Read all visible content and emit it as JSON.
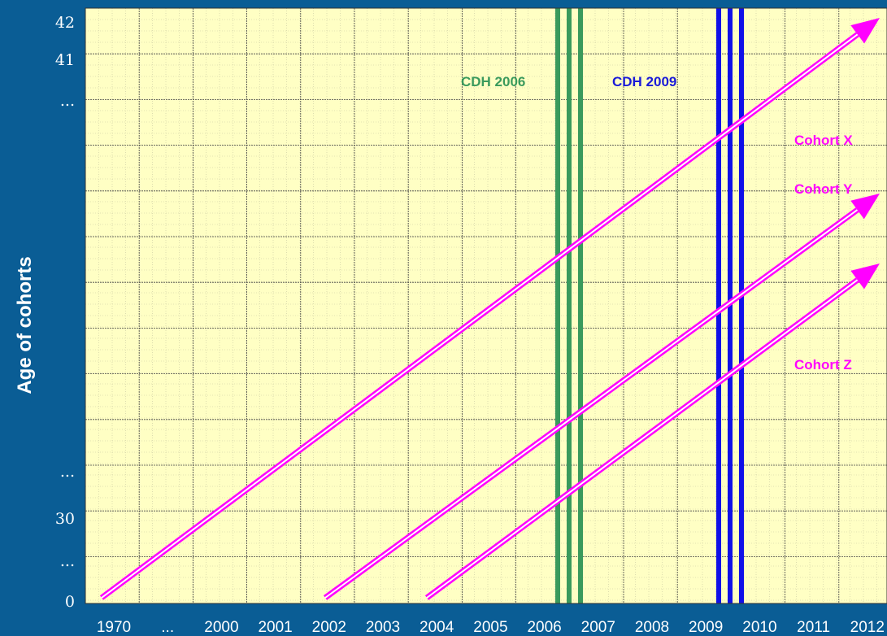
{
  "y_axis": {
    "title": "Age of cohorts",
    "labels": [
      "42",
      "41",
      "...",
      "...",
      "30",
      "...",
      "0"
    ]
  },
  "x_axis": {
    "labels": [
      "1970",
      "...",
      "2000",
      "2001",
      "2002",
      "2003",
      "2004",
      "2005",
      "2006",
      "2007",
      "2008",
      "2009",
      "2010",
      "2011",
      "2012"
    ]
  },
  "markers": [
    {
      "label": "CDH 2006"
    },
    {
      "label": "CDH 2009"
    }
  ],
  "cohorts": [
    {
      "label": "Cohort X"
    },
    {
      "label": "Cohort Y"
    },
    {
      "label": "Cohort Z"
    }
  ]
}
